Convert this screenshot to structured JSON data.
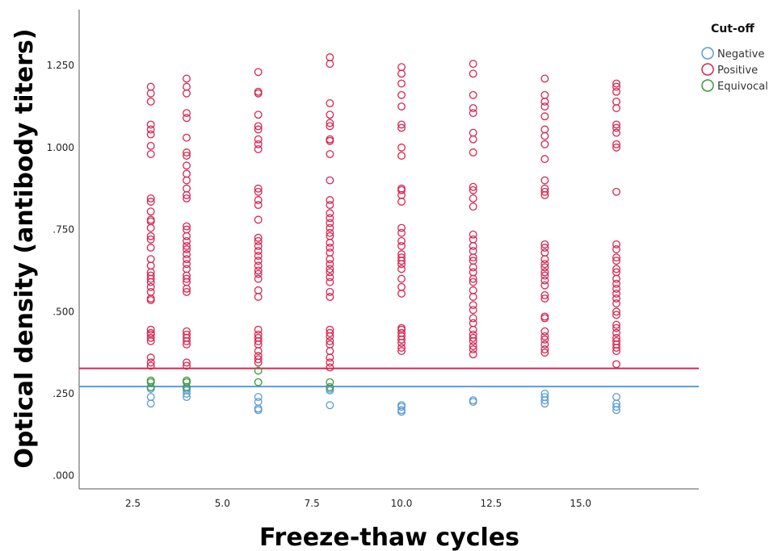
{
  "chart_data": {
    "type": "scatter",
    "xlabel": "Freeze-thaw cycles",
    "ylabel": "Optical density (antibody titers)",
    "xlim": [
      1.0,
      18.3
    ],
    "ylim": [
      -0.04,
      1.42
    ],
    "x_ticks": [
      2.5,
      5.0,
      7.5,
      10.0,
      12.5,
      15.0
    ],
    "x_tick_labels": [
      "2.5",
      "5.0",
      "7.5",
      "10.0",
      "12.5",
      "15.0"
    ],
    "y_ticks": [
      0.0,
      0.25,
      0.5,
      0.75,
      1.0,
      1.25
    ],
    "y_tick_labels": [
      ".000",
      ".250",
      ".500",
      ".750",
      "1.000",
      "1.250"
    ],
    "grid": false,
    "legend": {
      "title": "Cut-off",
      "position": "top-right"
    },
    "series": [
      {
        "name": "Negative",
        "color": "#5b9bd5",
        "points": [
          [
            3,
            0.22
          ],
          [
            3,
            0.24
          ],
          [
            3,
            0.265
          ],
          [
            4,
            0.24
          ],
          [
            4,
            0.25
          ],
          [
            4,
            0.26
          ],
          [
            4,
            0.265
          ],
          [
            6,
            0.2
          ],
          [
            6,
            0.205
          ],
          [
            6,
            0.225
          ],
          [
            6,
            0.24
          ],
          [
            8,
            0.215
          ],
          [
            8,
            0.26
          ],
          [
            8,
            0.265
          ],
          [
            10,
            0.195
          ],
          [
            10,
            0.2
          ],
          [
            10,
            0.21
          ],
          [
            10,
            0.215
          ],
          [
            12,
            0.225
          ],
          [
            12,
            0.23
          ],
          [
            14,
            0.22
          ],
          [
            14,
            0.23
          ],
          [
            14,
            0.24
          ],
          [
            14,
            0.25
          ],
          [
            16,
            0.2
          ],
          [
            16,
            0.21
          ],
          [
            16,
            0.22
          ],
          [
            16,
            0.24
          ]
        ]
      },
      {
        "name": "Positive",
        "color": "#d6264f",
        "points": [
          [
            3,
            1.185
          ],
          [
            3,
            1.165
          ],
          [
            3,
            1.14
          ],
          [
            3,
            1.07
          ],
          [
            3,
            1.055
          ],
          [
            3,
            1.04
          ],
          [
            3,
            1.005
          ],
          [
            3,
            0.98
          ],
          [
            3,
            0.845
          ],
          [
            3,
            0.835
          ],
          [
            3,
            0.805
          ],
          [
            3,
            0.78
          ],
          [
            3,
            0.775
          ],
          [
            3,
            0.755
          ],
          [
            3,
            0.73
          ],
          [
            3,
            0.72
          ],
          [
            3,
            0.695
          ],
          [
            3,
            0.66
          ],
          [
            3,
            0.64
          ],
          [
            3,
            0.62
          ],
          [
            3,
            0.61
          ],
          [
            3,
            0.6
          ],
          [
            3,
            0.59
          ],
          [
            3,
            0.575
          ],
          [
            3,
            0.56
          ],
          [
            3,
            0.54
          ],
          [
            3,
            0.535
          ],
          [
            3,
            0.445
          ],
          [
            3,
            0.435
          ],
          [
            3,
            0.43
          ],
          [
            3,
            0.42
          ],
          [
            3,
            0.41
          ],
          [
            3,
            0.36
          ],
          [
            3,
            0.345
          ],
          [
            3,
            0.335
          ],
          [
            4,
            1.21
          ],
          [
            4,
            1.185
          ],
          [
            4,
            1.165
          ],
          [
            4,
            1.105
          ],
          [
            4,
            1.09
          ],
          [
            4,
            1.03
          ],
          [
            4,
            0.985
          ],
          [
            4,
            0.975
          ],
          [
            4,
            0.945
          ],
          [
            4,
            0.92
          ],
          [
            4,
            0.9
          ],
          [
            4,
            0.875
          ],
          [
            4,
            0.855
          ],
          [
            4,
            0.845
          ],
          [
            4,
            0.76
          ],
          [
            4,
            0.75
          ],
          [
            4,
            0.73
          ],
          [
            4,
            0.715
          ],
          [
            4,
            0.7
          ],
          [
            4,
            0.69
          ],
          [
            4,
            0.675
          ],
          [
            4,
            0.66
          ],
          [
            4,
            0.645
          ],
          [
            4,
            0.63
          ],
          [
            4,
            0.61
          ],
          [
            4,
            0.6
          ],
          [
            4,
            0.59
          ],
          [
            4,
            0.57
          ],
          [
            4,
            0.56
          ],
          [
            4,
            0.44
          ],
          [
            4,
            0.43
          ],
          [
            4,
            0.42
          ],
          [
            4,
            0.41
          ],
          [
            4,
            0.4
          ],
          [
            4,
            0.345
          ],
          [
            4,
            0.335
          ],
          [
            6,
            1.23
          ],
          [
            6,
            1.17
          ],
          [
            6,
            1.165
          ],
          [
            6,
            1.1
          ],
          [
            6,
            1.065
          ],
          [
            6,
            1.055
          ],
          [
            6,
            1.025
          ],
          [
            6,
            1.01
          ],
          [
            6,
            0.995
          ],
          [
            6,
            0.875
          ],
          [
            6,
            0.865
          ],
          [
            6,
            0.84
          ],
          [
            6,
            0.825
          ],
          [
            6,
            0.78
          ],
          [
            6,
            0.725
          ],
          [
            6,
            0.715
          ],
          [
            6,
            0.7
          ],
          [
            6,
            0.685
          ],
          [
            6,
            0.67
          ],
          [
            6,
            0.655
          ],
          [
            6,
            0.64
          ],
          [
            6,
            0.625
          ],
          [
            6,
            0.615
          ],
          [
            6,
            0.6
          ],
          [
            6,
            0.565
          ],
          [
            6,
            0.545
          ],
          [
            6,
            0.445
          ],
          [
            6,
            0.43
          ],
          [
            6,
            0.42
          ],
          [
            6,
            0.41
          ],
          [
            6,
            0.4
          ],
          [
            6,
            0.38
          ],
          [
            6,
            0.365
          ],
          [
            6,
            0.355
          ],
          [
            6,
            0.345
          ],
          [
            8,
            1.275
          ],
          [
            8,
            1.255
          ],
          [
            8,
            1.135
          ],
          [
            8,
            1.1
          ],
          [
            8,
            1.075
          ],
          [
            8,
            1.065
          ],
          [
            8,
            1.025
          ],
          [
            8,
            1.02
          ],
          [
            8,
            0.98
          ],
          [
            8,
            0.9
          ],
          [
            8,
            0.84
          ],
          [
            8,
            0.825
          ],
          [
            8,
            0.8
          ],
          [
            8,
            0.785
          ],
          [
            8,
            0.77
          ],
          [
            8,
            0.755
          ],
          [
            8,
            0.74
          ],
          [
            8,
            0.73
          ],
          [
            8,
            0.71
          ],
          [
            8,
            0.695
          ],
          [
            8,
            0.68
          ],
          [
            8,
            0.66
          ],
          [
            8,
            0.645
          ],
          [
            8,
            0.63
          ],
          [
            8,
            0.62
          ],
          [
            8,
            0.605
          ],
          [
            8,
            0.59
          ],
          [
            8,
            0.56
          ],
          [
            8,
            0.545
          ],
          [
            8,
            0.445
          ],
          [
            8,
            0.435
          ],
          [
            8,
            0.425
          ],
          [
            8,
            0.41
          ],
          [
            8,
            0.4
          ],
          [
            8,
            0.38
          ],
          [
            8,
            0.36
          ],
          [
            8,
            0.345
          ],
          [
            8,
            0.33
          ],
          [
            10,
            1.245
          ],
          [
            10,
            1.225
          ],
          [
            10,
            1.195
          ],
          [
            10,
            1.16
          ],
          [
            10,
            1.125
          ],
          [
            10,
            1.07
          ],
          [
            10,
            1.06
          ],
          [
            10,
            1.0
          ],
          [
            10,
            0.975
          ],
          [
            10,
            0.875
          ],
          [
            10,
            0.87
          ],
          [
            10,
            0.855
          ],
          [
            10,
            0.835
          ],
          [
            10,
            0.755
          ],
          [
            10,
            0.74
          ],
          [
            10,
            0.715
          ],
          [
            10,
            0.7
          ],
          [
            10,
            0.675
          ],
          [
            10,
            0.665
          ],
          [
            10,
            0.655
          ],
          [
            10,
            0.645
          ],
          [
            10,
            0.63
          ],
          [
            10,
            0.6
          ],
          [
            10,
            0.575
          ],
          [
            10,
            0.555
          ],
          [
            10,
            0.45
          ],
          [
            10,
            0.445
          ],
          [
            10,
            0.435
          ],
          [
            10,
            0.425
          ],
          [
            10,
            0.415
          ],
          [
            10,
            0.405
          ],
          [
            10,
            0.39
          ],
          [
            10,
            0.38
          ],
          [
            12,
            1.255
          ],
          [
            12,
            1.225
          ],
          [
            12,
            1.16
          ],
          [
            12,
            1.12
          ],
          [
            12,
            1.105
          ],
          [
            12,
            1.045
          ],
          [
            12,
            1.025
          ],
          [
            12,
            0.985
          ],
          [
            12,
            0.88
          ],
          [
            12,
            0.87
          ],
          [
            12,
            0.845
          ],
          [
            12,
            0.82
          ],
          [
            12,
            0.735
          ],
          [
            12,
            0.72
          ],
          [
            12,
            0.7
          ],
          [
            12,
            0.685
          ],
          [
            12,
            0.665
          ],
          [
            12,
            0.655
          ],
          [
            12,
            0.635
          ],
          [
            12,
            0.62
          ],
          [
            12,
            0.6
          ],
          [
            12,
            0.59
          ],
          [
            12,
            0.565
          ],
          [
            12,
            0.545
          ],
          [
            12,
            0.52
          ],
          [
            12,
            0.505
          ],
          [
            12,
            0.48
          ],
          [
            12,
            0.465
          ],
          [
            12,
            0.445
          ],
          [
            12,
            0.43
          ],
          [
            12,
            0.42
          ],
          [
            12,
            0.41
          ],
          [
            12,
            0.395
          ],
          [
            12,
            0.385
          ],
          [
            12,
            0.37
          ],
          [
            14,
            1.21
          ],
          [
            14,
            1.16
          ],
          [
            14,
            1.14
          ],
          [
            14,
            1.125
          ],
          [
            14,
            1.095
          ],
          [
            14,
            1.055
          ],
          [
            14,
            1.035
          ],
          [
            14,
            1.01
          ],
          [
            14,
            0.965
          ],
          [
            14,
            0.9
          ],
          [
            14,
            0.875
          ],
          [
            14,
            0.865
          ],
          [
            14,
            0.855
          ],
          [
            14,
            0.705
          ],
          [
            14,
            0.695
          ],
          [
            14,
            0.68
          ],
          [
            14,
            0.66
          ],
          [
            14,
            0.645
          ],
          [
            14,
            0.635
          ],
          [
            14,
            0.62
          ],
          [
            14,
            0.61
          ],
          [
            14,
            0.595
          ],
          [
            14,
            0.58
          ],
          [
            14,
            0.55
          ],
          [
            14,
            0.54
          ],
          [
            14,
            0.485
          ],
          [
            14,
            0.48
          ],
          [
            14,
            0.44
          ],
          [
            14,
            0.425
          ],
          [
            14,
            0.415
          ],
          [
            14,
            0.4
          ],
          [
            14,
            0.385
          ],
          [
            14,
            0.375
          ],
          [
            16,
            1.195
          ],
          [
            16,
            1.185
          ],
          [
            16,
            1.17
          ],
          [
            16,
            1.14
          ],
          [
            16,
            1.12
          ],
          [
            16,
            1.07
          ],
          [
            16,
            1.06
          ],
          [
            16,
            1.045
          ],
          [
            16,
            1.01
          ],
          [
            16,
            1.0
          ],
          [
            16,
            0.865
          ],
          [
            16,
            0.705
          ],
          [
            16,
            0.69
          ],
          [
            16,
            0.665
          ],
          [
            16,
            0.655
          ],
          [
            16,
            0.63
          ],
          [
            16,
            0.62
          ],
          [
            16,
            0.6
          ],
          [
            16,
            0.585
          ],
          [
            16,
            0.57
          ],
          [
            16,
            0.555
          ],
          [
            16,
            0.54
          ],
          [
            16,
            0.525
          ],
          [
            16,
            0.5
          ],
          [
            16,
            0.49
          ],
          [
            16,
            0.46
          ],
          [
            16,
            0.45
          ],
          [
            16,
            0.435
          ],
          [
            16,
            0.42
          ],
          [
            16,
            0.41
          ],
          [
            16,
            0.4
          ],
          [
            16,
            0.39
          ],
          [
            16,
            0.38
          ],
          [
            16,
            0.34
          ]
        ]
      },
      {
        "name": "Equivocal",
        "color": "#3a9a3a",
        "points": [
          [
            3,
            0.27
          ],
          [
            3,
            0.285
          ],
          [
            3,
            0.29
          ],
          [
            4,
            0.27
          ],
          [
            4,
            0.285
          ],
          [
            4,
            0.29
          ],
          [
            6,
            0.285
          ],
          [
            6,
            0.32
          ],
          [
            8,
            0.27
          ],
          [
            8,
            0.285
          ]
        ]
      }
    ],
    "reference_lines": [
      {
        "orientation": "horizontal",
        "y": 0.327,
        "color": "#d6264f"
      },
      {
        "orientation": "horizontal",
        "y": 0.272,
        "color": "#5b9bd5"
      }
    ]
  }
}
